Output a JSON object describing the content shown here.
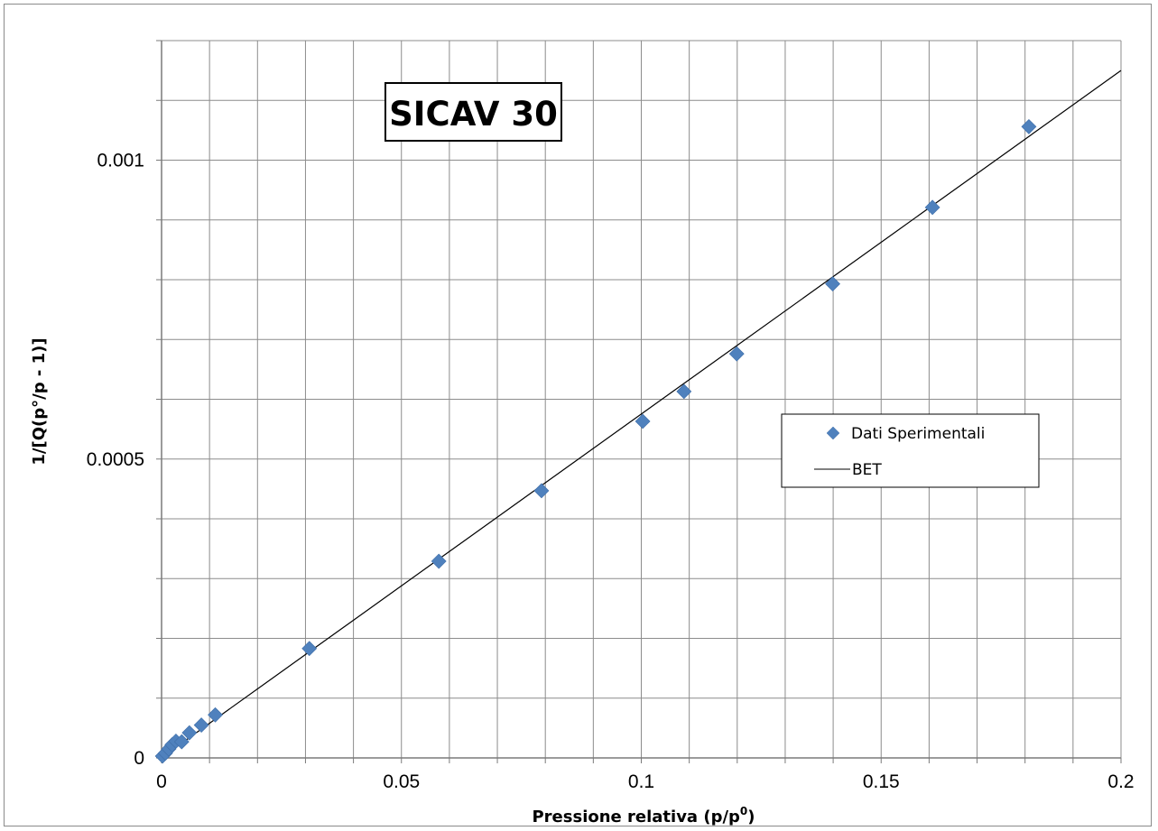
{
  "chart_data": {
    "type": "scatter",
    "title": "SICAV 30",
    "xlabel": "Pressione relativa (p/p",
    "xlabel_superscript": "0",
    "xlabel_suffix": ")",
    "ylabel": "1/[Q(p°/p - 1)]",
    "xlim": [
      0,
      0.2
    ],
    "ylim": [
      0,
      0.0012
    ],
    "x_ticks": [
      0,
      0.05,
      0.1,
      0.15,
      0.2
    ],
    "x_tick_labels": [
      "0",
      "0.05",
      "0.1",
      "0.15",
      "0.2"
    ],
    "y_ticks": [
      0,
      0.0005,
      0.001
    ],
    "y_tick_labels": [
      "0",
      "0.0005",
      "0.001"
    ],
    "x_grid_step": 0.01,
    "y_grid_step": 0.0001,
    "grid": true,
    "legend_position": "right",
    "series": [
      {
        "name": "Dati Sperimentali",
        "kind": "markers",
        "marker": "diamond",
        "color": "#4f81bd",
        "x": [
          0.0002,
          0.0008,
          0.0015,
          0.0022,
          0.003,
          0.0042,
          0.0058,
          0.0083,
          0.0112,
          0.0308,
          0.0578,
          0.0792,
          0.1003,
          0.1089,
          0.1199,
          0.1399,
          0.1607,
          0.1808
        ],
        "y": [
          3e-06,
          8e-06,
          1.5e-05,
          2.2e-05,
          2.8e-05,
          2.7e-05,
          4.2e-05,
          5.5e-05,
          7.2e-05,
          0.000183,
          0.000329,
          0.000447,
          0.000563,
          0.000613,
          0.000676,
          0.000793,
          0.000921,
          0.001056
        ]
      },
      {
        "name": "BET",
        "kind": "line",
        "color": "#000000",
        "x": [
          0,
          0.2
        ],
        "y": [
          5e-07,
          0.00115
        ]
      }
    ]
  }
}
